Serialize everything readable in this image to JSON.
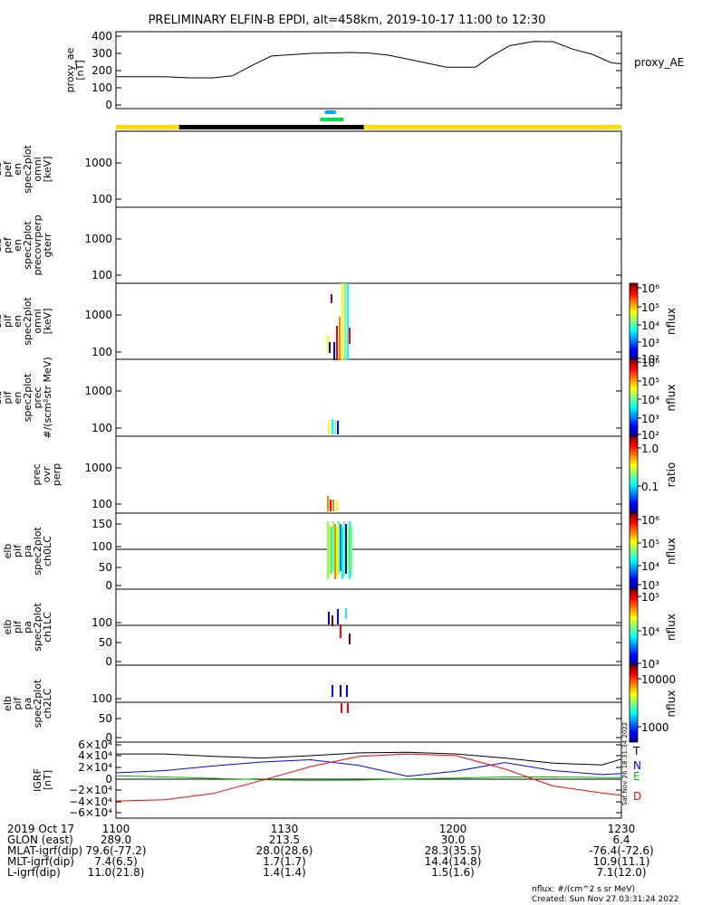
{
  "title": "PRELIMINARY ELFIN-B EPDI, alt=458km, 2019-10-17 11:00 to 12:30",
  "status_bar": {
    "colors": {
      "dayside": "#ffdd00",
      "nightside": "#000000",
      "fast_mode": "#00aaff",
      "science_zone": "#00dd44"
    }
  },
  "panels": [
    {
      "id": "proxy-ae",
      "ylabel": [
        "proxy_ae",
        "[nT]"
      ],
      "legend": "proxy_AE",
      "yticks": [
        "400",
        "300",
        "200",
        "100",
        "0"
      ]
    },
    {
      "id": "pef-omni",
      "ylabel": [
        "elb",
        "pef",
        "en",
        "spec2plot",
        "omni",
        "[keV]"
      ],
      "yticks": [
        "1000",
        "100"
      ]
    },
    {
      "id": "pef-precovrperp",
      "ylabel": [
        "elb",
        "pef",
        "en",
        "spec2plot",
        "precovrperp",
        "gterr"
      ],
      "yticks": [
        "1000",
        "100"
      ]
    },
    {
      "id": "pif-omni",
      "ylabel": [
        "elb",
        "pif",
        "en",
        "spec2plot",
        "omni",
        "[keV]"
      ],
      "yticks": [
        "1000",
        "100"
      ]
    },
    {
      "id": "pif-prec",
      "ylabel": [
        "elb",
        "pif",
        "en",
        "spec2plot",
        "prec",
        "#/(scm²str MeV)"
      ],
      "yticks": [
        "1000",
        "100"
      ]
    },
    {
      "id": "prec-ovr-perp",
      "ylabel": [
        "prec",
        "ovr",
        "perp"
      ],
      "yticks": [
        "1000",
        "100"
      ]
    },
    {
      "id": "pa-ch0lc",
      "ylabel": [
        "elb",
        "pif",
        "pa",
        "spec2plot",
        "ch0LC"
      ],
      "yticks": [
        "150",
        "100",
        "50",
        "0"
      ]
    },
    {
      "id": "pa-ch1lc",
      "ylabel": [
        "elb",
        "pif",
        "pa",
        "spec2plot",
        "ch1LC"
      ],
      "yticks": [
        "100",
        "50",
        "0"
      ]
    },
    {
      "id": "pa-ch2lc",
      "ylabel": [
        "elb",
        "pif",
        "pa",
        "spec2plot",
        "ch2LC"
      ],
      "yticks": [
        "100",
        "50",
        "0"
      ]
    },
    {
      "id": "igrf",
      "ylabel": [
        "IGRF",
        "[nT]"
      ],
      "yticks": [
        "6×10⁴",
        "4×10⁴",
        "2×10⁴",
        "0",
        "−2×10⁴",
        "−4×10⁴",
        "−6×10⁴"
      ],
      "legend": [
        "T",
        "N",
        "E",
        "D"
      ]
    }
  ],
  "colorbars": [
    {
      "unit": "nflux",
      "ticks": [
        "10⁶",
        "10⁵",
        "10⁴",
        "10³",
        "10²"
      ]
    },
    {
      "unit": "nflux",
      "ticks": [
        "10⁶",
        "10⁵",
        "10⁴",
        "10³",
        "10²"
      ]
    },
    {
      "unit": "ratio",
      "ticks": [
        "1.0",
        "0.1"
      ]
    },
    {
      "unit": "nflux",
      "ticks": [
        "10⁶",
        "10⁵",
        "10⁴",
        "10³"
      ]
    },
    {
      "unit": "nflux",
      "ticks": [
        "10⁵",
        "10⁴",
        "10³"
      ]
    },
    {
      "unit": "nflux",
      "ticks": [
        "10000",
        "1000"
      ]
    }
  ],
  "chart_data": [
    {
      "type": "line",
      "title": "PRELIMINARY ELFIN-B EPDI, alt=458km, 2019-10-17 11:00 to 12:30",
      "ylabel": "proxy_ae [nT]",
      "ylim": [
        0,
        420
      ],
      "x": [
        "10:50",
        "11:00",
        "11:05",
        "11:10",
        "11:14",
        "11:18",
        "11:22",
        "11:30",
        "11:38",
        "11:42",
        "11:46",
        "11:52",
        "11:58",
        "12:04",
        "12:07",
        "12:11",
        "12:16",
        "12:20",
        "12:24",
        "12:28",
        "12:32",
        "12:34"
      ],
      "series": [
        {
          "name": "proxy_AE",
          "values": [
            165,
            165,
            158,
            158,
            170,
            230,
            285,
            300,
            305,
            302,
            290,
            255,
            220,
            220,
            280,
            345,
            370,
            368,
            325,
            295,
            245,
            240
          ]
        }
      ]
    },
    {
      "type": "line",
      "ylabel": "IGRF [nT]",
      "ylim": [
        -65000,
        65000
      ],
      "x": [
        "10:50",
        "11:00",
        "11:10",
        "11:20",
        "11:30",
        "11:40",
        "11:50",
        "12:00",
        "12:10",
        "12:20",
        "12:30",
        "12:34"
      ],
      "series": [
        {
          "name": "T",
          "values": [
            44000,
            44000,
            40000,
            37000,
            41000,
            46000,
            47000,
            44000,
            37000,
            28000,
            25000,
            35000
          ]
        },
        {
          "name": "N",
          "values": [
            11000,
            15000,
            23000,
            30000,
            34000,
            24000,
            5000,
            14000,
            29000,
            15000,
            8000,
            10000
          ]
        },
        {
          "name": "E",
          "values": [
            6000,
            4000,
            1500,
            -1000,
            -2000,
            -1500,
            500,
            2000,
            4000,
            4000,
            3000,
            2500
          ]
        },
        {
          "name": "D",
          "values": [
            -38000,
            -36000,
            -25000,
            -2000,
            22000,
            40000,
            44000,
            41000,
            18000,
            -12000,
            -24000,
            -28000
          ]
        }
      ]
    },
    {
      "type": "table",
      "columns": [
        "",
        "1100",
        "1130",
        "1200",
        "1230"
      ],
      "rows": [
        [
          "2019 Oct 17",
          "1100",
          "1130",
          "1200",
          "1230"
        ],
        [
          "GLON (east)",
          "289.0",
          "213.5",
          "30.0",
          "6.4"
        ],
        [
          "MLAT-igrf(dip)",
          "79.6(-77.2)",
          "28.0(28.6)",
          "28.3(35.5)",
          "-76.4(-72.6)"
        ],
        [
          "MLT-igrf(dip)",
          "7.4(6.5)",
          "1.7(1.7)",
          "14.4(14.8)",
          "10.9(11.1)"
        ],
        [
          "L-igrf(dip)",
          "11.0(21.8)",
          "1.4(1.4)",
          "1.5(1.6)",
          "7.1(12.0)"
        ]
      ]
    }
  ],
  "footer": {
    "nflux_def": "nflux: #/(cm^2 s sr MeV)",
    "created": "Created: Sun Nov 27 03:31:24 2022",
    "vertical_stamp": "Sat Nov 26 18:31:34 2022"
  }
}
